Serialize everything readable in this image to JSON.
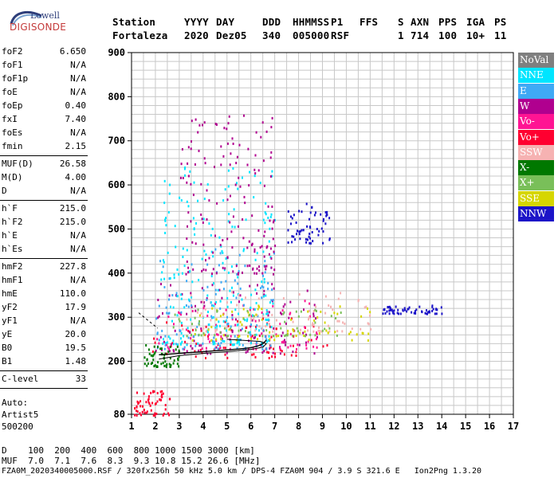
{
  "logo": {
    "line1": "Lowell",
    "line2": "DIGISONDE"
  },
  "header": {
    "columns": [
      "Station",
      "YYYY",
      "DAY",
      "DDD",
      "HHMMSS",
      "P1",
      "FFS",
      "S",
      "AXN",
      "PPS",
      "IGA",
      "PS"
    ],
    "values": [
      "Fortaleza",
      "2020",
      "Dez05",
      "340",
      "005000",
      "RSF",
      "",
      "1",
      "714",
      "100",
      "10+",
      "11"
    ]
  },
  "params": {
    "group1": [
      {
        "label": "foF2",
        "value": "6.650"
      },
      {
        "label": "foF1",
        "value": "N/A"
      },
      {
        "label": "foF1p",
        "value": "N/A"
      },
      {
        "label": "foE",
        "value": "N/A"
      },
      {
        "label": "foEp",
        "value": "0.40"
      },
      {
        "label": "fxI",
        "value": "7.40"
      },
      {
        "label": "foEs",
        "value": "N/A"
      },
      {
        "label": "fmin",
        "value": "2.15"
      }
    ],
    "group2": [
      {
        "label": "MUF(D)",
        "value": "26.58"
      },
      {
        "label": "M(D)",
        "value": "4.00"
      },
      {
        "label": "D",
        "value": "N/A"
      }
    ],
    "group3": [
      {
        "label": "h`F",
        "value": "215.0"
      },
      {
        "label": "h`F2",
        "value": "215.0"
      },
      {
        "label": "h`E",
        "value": "N/A"
      },
      {
        "label": "h`Es",
        "value": "N/A"
      }
    ],
    "group4": [
      {
        "label": "hmF2",
        "value": "227.8"
      },
      {
        "label": "hmF1",
        "value": "N/A"
      },
      {
        "label": "hmE",
        "value": "110.0"
      },
      {
        "label": "yF2",
        "value": "17.9"
      },
      {
        "label": "yF1",
        "value": "N/A"
      },
      {
        "label": "yE",
        "value": "20.0"
      },
      {
        "label": "B0",
        "value": "19.5"
      },
      {
        "label": "B1",
        "value": "1.48"
      }
    ],
    "group5": [
      {
        "label": "C-level",
        "value": "33"
      }
    ],
    "auto": [
      "Auto:",
      "Artist5",
      "500200"
    ]
  },
  "legend": [
    {
      "label": "NoVal",
      "color": "#7f7f7f"
    },
    {
      "label": "NNE",
      "color": "#00e5ff"
    },
    {
      "label": "E",
      "color": "#3fa9f5"
    },
    {
      "label": "W",
      "color": "#b0008f"
    },
    {
      "label": "Vo-",
      "color": "#ff1493"
    },
    {
      "label": "Vo+",
      "color": "#ff0030"
    },
    {
      "label": "SSW",
      "color": "#f6b2b2"
    },
    {
      "label": "X-",
      "color": "#007800"
    },
    {
      "label": "X+",
      "color": "#79bf59"
    },
    {
      "label": "SSE",
      "color": "#d6d600"
    },
    {
      "label": "NNW",
      "color": "#1c14c8"
    }
  ],
  "bottom": {
    "d_row": "D    100  200  400  600  800 1000 1500 3000 [km]",
    "muf_row": "MUF  7.0  7.1  7.6  8.3  9.3 10.8 15.2 26.6 [MHz]",
    "footer": "FZA0M_2020340005000.RSF / 320fx256h 50 kHz 5.0 km / DPS-4 FZA0M 904 / 3.9 S 321.6 E   Ion2Png 1.3.20"
  },
  "chart_data": {
    "type": "scatter",
    "title": "",
    "xlabel": "",
    "ylabel": "",
    "xlim": [
      1,
      17
    ],
    "ylim": [
      80,
      900
    ],
    "x_ticks": [
      1,
      2,
      3,
      4,
      5,
      6,
      7,
      8,
      9,
      10,
      11,
      12,
      13,
      14,
      15,
      16,
      17
    ],
    "y_ticks": [
      80,
      200,
      300,
      400,
      500,
      600,
      700,
      800,
      900
    ],
    "grid": true,
    "legend_position": "right",
    "ionogram_trace": {
      "freq_mhz": [
        2.15,
        2.5,
        3.0,
        3.5,
        4.0,
        4.5,
        5.0,
        5.5,
        6.0,
        6.3,
        6.5,
        6.65
      ],
      "height_km": [
        215,
        216,
        218,
        220,
        222,
        224,
        226,
        228,
        231,
        235,
        240,
        248
      ]
    },
    "profile_curve": {
      "freq_mhz": [
        2.15,
        3.0,
        4.0,
        5.0,
        6.0,
        6.5,
        6.65,
        6.4,
        5.0
      ],
      "height_km": [
        205,
        213,
        218,
        222,
        227,
        232,
        240,
        245,
        250
      ]
    },
    "echo_clusters": [
      {
        "series": "Vo+",
        "x_range": [
          1.8,
          9.2
        ],
        "y_range": [
          210,
          300
        ]
      },
      {
        "series": "W",
        "x_range": [
          1.9,
          8.8
        ],
        "y_range": [
          220,
          380
        ]
      },
      {
        "series": "Vo-",
        "x_range": [
          2.0,
          9.0
        ],
        "y_range": [
          230,
          340
        ]
      },
      {
        "series": "E",
        "x_range": [
          2.0,
          7.0
        ],
        "y_range": [
          230,
          460
        ]
      },
      {
        "series": "NNE",
        "x_range": [
          2.2,
          7.0
        ],
        "y_range": [
          240,
          660
        ]
      },
      {
        "series": "SSW",
        "x_range": [
          3.0,
          11.0
        ],
        "y_range": [
          270,
          360
        ]
      },
      {
        "series": "SSE",
        "x_range": [
          3.5,
          11.0
        ],
        "y_range": [
          250,
          340
        ]
      },
      {
        "series": "X+",
        "x_range": [
          2.5,
          10.0
        ],
        "y_range": [
          260,
          320
        ]
      },
      {
        "series": "X-",
        "x_range": [
          1.5,
          3.0
        ],
        "y_range": [
          190,
          240
        ]
      },
      {
        "series": "NNW",
        "x_range": [
          7.5,
          9.3
        ],
        "y_range": [
          470,
          560
        ]
      },
      {
        "series": "NNW",
        "x_range": [
          11.5,
          14.0
        ],
        "y_range": [
          310,
          330
        ]
      },
      {
        "series": "Vo+",
        "x_range": [
          1.1,
          2.6
        ],
        "y_range": [
          80,
          135
        ]
      },
      {
        "series": "W",
        "x_range": [
          3.0,
          7.0
        ],
        "y_range": [
          400,
          760
        ]
      }
    ]
  }
}
